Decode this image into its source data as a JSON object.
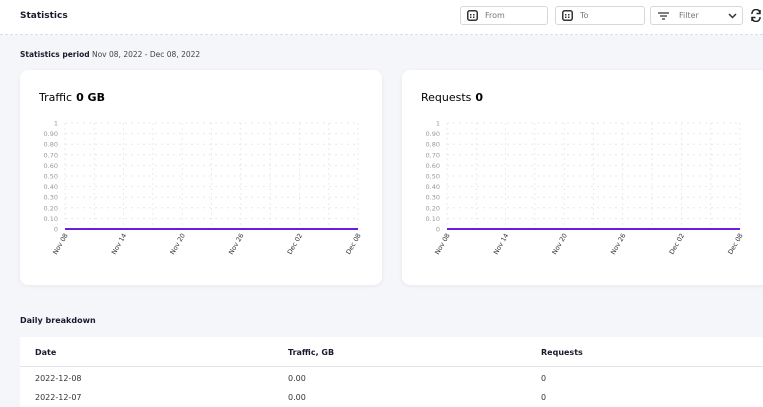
{
  "header": {
    "title": "Statistics",
    "from": "From",
    "to": "To",
    "filter": "Filter"
  },
  "period": {
    "label": "Statistics period",
    "range": "Nov 08, 2022 - Dec 08, 2022"
  },
  "chart_data": [
    {
      "type": "line",
      "title": "Traffic",
      "total": "0 GB",
      "categories": [
        "Nov 08",
        null,
        null,
        null,
        null,
        null,
        "Nov 14",
        null,
        null,
        null,
        null,
        null,
        "Nov 20",
        null,
        null,
        null,
        null,
        null,
        "Nov 26",
        null,
        null,
        null,
        null,
        null,
        "Dec 02",
        null,
        null,
        null,
        null,
        null,
        "Dec 08"
      ],
      "values": [
        0,
        0,
        0,
        0,
        0,
        0,
        0,
        0,
        0,
        0,
        0,
        0,
        0,
        0,
        0,
        0,
        0,
        0,
        0,
        0,
        0,
        0,
        0,
        0,
        0,
        0,
        0,
        0,
        0,
        0,
        0
      ],
      "color": "#6a1fe0",
      "ylim": [
        0,
        1
      ],
      "yticks": [
        0,
        {
          "value": 0.1,
          "label": "0.10"
        },
        {
          "value": 0.2,
          "label": "0.20"
        },
        {
          "value": 0.3,
          "label": "0.30"
        },
        {
          "value": 0.4,
          "label": "0.40"
        },
        {
          "value": 0.5,
          "label": "0.50"
        },
        {
          "value": 0.6,
          "label": "0.60"
        },
        {
          "value": 0.7,
          "label": "0.70"
        },
        {
          "value": 0.8,
          "label": "0.80"
        },
        {
          "value": 0.9,
          "label": "0.90"
        },
        1
      ],
      "grid": true
    },
    {
      "type": "line",
      "title": "Requests",
      "total": "0",
      "categories": [
        "Nov 08",
        null,
        null,
        null,
        null,
        null,
        "Nov 14",
        null,
        null,
        null,
        null,
        null,
        "Nov 20",
        null,
        null,
        null,
        null,
        null,
        "Nov 26",
        null,
        null,
        null,
        null,
        null,
        "Dec 02",
        null,
        null,
        null,
        null,
        null,
        "Dec 08"
      ],
      "values": [
        0,
        0,
        0,
        0,
        0,
        0,
        0,
        0,
        0,
        0,
        0,
        0,
        0,
        0,
        0,
        0,
        0,
        0,
        0,
        0,
        0,
        0,
        0,
        0,
        0,
        0,
        0,
        0,
        0,
        0,
        0
      ],
      "color": "#6a1fe0",
      "ylim": [
        0,
        1
      ],
      "yticks": [
        0,
        {
          "value": 0.1,
          "label": "0.10"
        },
        {
          "value": 0.2,
          "label": "0.20"
        },
        {
          "value": 0.3,
          "label": "0.30"
        },
        {
          "value": 0.4,
          "label": "0.40"
        },
        {
          "value": 0.5,
          "label": "0.50"
        },
        {
          "value": 0.6,
          "label": "0.60"
        },
        {
          "value": 0.7,
          "label": "0.70"
        },
        {
          "value": 0.8,
          "label": "0.80"
        },
        {
          "value": 0.9,
          "label": "0.90"
        },
        1
      ],
      "grid": true
    }
  ],
  "table": {
    "title": "Daily breakdown",
    "columns": [
      "Date",
      "Traffic, GB",
      "Requests"
    ],
    "rows": [
      [
        "2022-12-08",
        "0.00",
        "0"
      ],
      [
        "2022-12-07",
        "0.00",
        "0"
      ]
    ]
  }
}
